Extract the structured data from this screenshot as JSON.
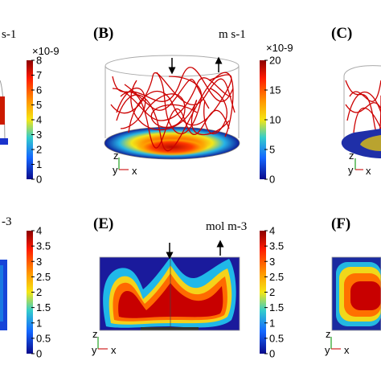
{
  "panels": {
    "a": {
      "unit": "s-1",
      "scale": "×10-9",
      "ticks": [
        "8",
        "7",
        "6",
        "5",
        "4",
        "3",
        "2",
        "1",
        "0"
      ]
    },
    "b": {
      "label": "(B)",
      "unit": "m s-1",
      "scale": "×10-9",
      "ticks": [
        "20",
        "15",
        "10",
        "5",
        "0"
      ]
    },
    "c": {
      "label": "(C)"
    },
    "d": {
      "unit": "-3",
      "ticks": [
        "4",
        "3.5",
        "3",
        "2.5",
        "2",
        "1.5",
        "1",
        "0.5",
        "0"
      ]
    },
    "e": {
      "label": "(E)",
      "unit": "mol m-3",
      "ticks": [
        "4",
        "3.5",
        "3",
        "2.5",
        "2",
        "1.5",
        "1",
        "0.5",
        "0"
      ]
    },
    "f": {
      "label": "(F)"
    }
  },
  "axes": {
    "z": "z",
    "y": "y",
    "x": "x"
  },
  "colors": {
    "red": "#b00000",
    "orange": "#f07010",
    "yellow": "#f0e020",
    "cyan": "#20c0e0",
    "blue": "#101090"
  }
}
